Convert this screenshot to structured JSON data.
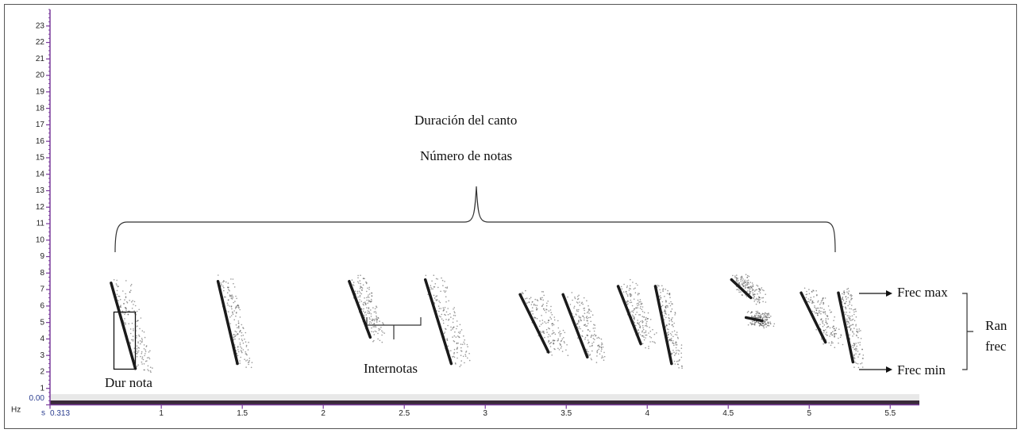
{
  "chart_data": {
    "type": "spectrogram",
    "x_label": "s",
    "y_label": "Hz",
    "xlim": [
      0.313,
      5.68
    ],
    "ylim": [
      0,
      24
    ],
    "xticks": [
      {
        "value": 0.313,
        "label": "0.313"
      },
      1,
      1.5,
      2,
      2.5,
      3,
      3.5,
      4,
      4.5,
      5,
      5.5
    ],
    "yticks": [
      {
        "value": 0,
        "label": "0.00"
      },
      1,
      2,
      3,
      4,
      5,
      6,
      7,
      8,
      9,
      10,
      11,
      12,
      13,
      14,
      15,
      16,
      17,
      18,
      19,
      20,
      21,
      22,
      23
    ],
    "color": "#1a1a1a",
    "axis_color": "#7a3b9c",
    "notes": [
      {
        "x": [
          0.69,
          0.84
        ],
        "y": [
          7.4,
          2.2
        ]
      },
      {
        "x": [
          1.35,
          1.47
        ],
        "y": [
          7.5,
          2.5
        ]
      },
      {
        "x": [
          2.16,
          2.29
        ],
        "y": [
          7.5,
          4.1
        ]
      },
      {
        "x": [
          2.63,
          2.79
        ],
        "y": [
          7.6,
          2.5
        ]
      },
      {
        "x": [
          3.215,
          3.39
        ],
        "y": [
          6.7,
          3.2
        ]
      },
      {
        "x": [
          3.48,
          3.63
        ],
        "y": [
          6.7,
          2.9
        ]
      },
      {
        "x": [
          3.82,
          3.96
        ],
        "y": [
          7.2,
          3.7
        ]
      },
      {
        "x": [
          4.05,
          4.15
        ],
        "y": [
          7.2,
          2.5
        ]
      },
      {
        "x": [
          4.52,
          4.64
        ],
        "y": [
          7.6,
          6.5
        ]
      },
      {
        "x": [
          4.61,
          4.71
        ],
        "y": [
          5.3,
          5.1
        ]
      },
      {
        "x": [
          4.95,
          5.1
        ],
        "y": [
          6.8,
          3.8
        ]
      },
      {
        "x": [
          5.18,
          5.27
        ],
        "y": [
          6.8,
          2.6
        ]
      }
    ],
    "annotations": [
      "Duración del canto",
      "Número de notas",
      "Dur nota",
      "Internotas",
      "Frec max",
      "Frec min",
      "Ran",
      "frec"
    ]
  }
}
